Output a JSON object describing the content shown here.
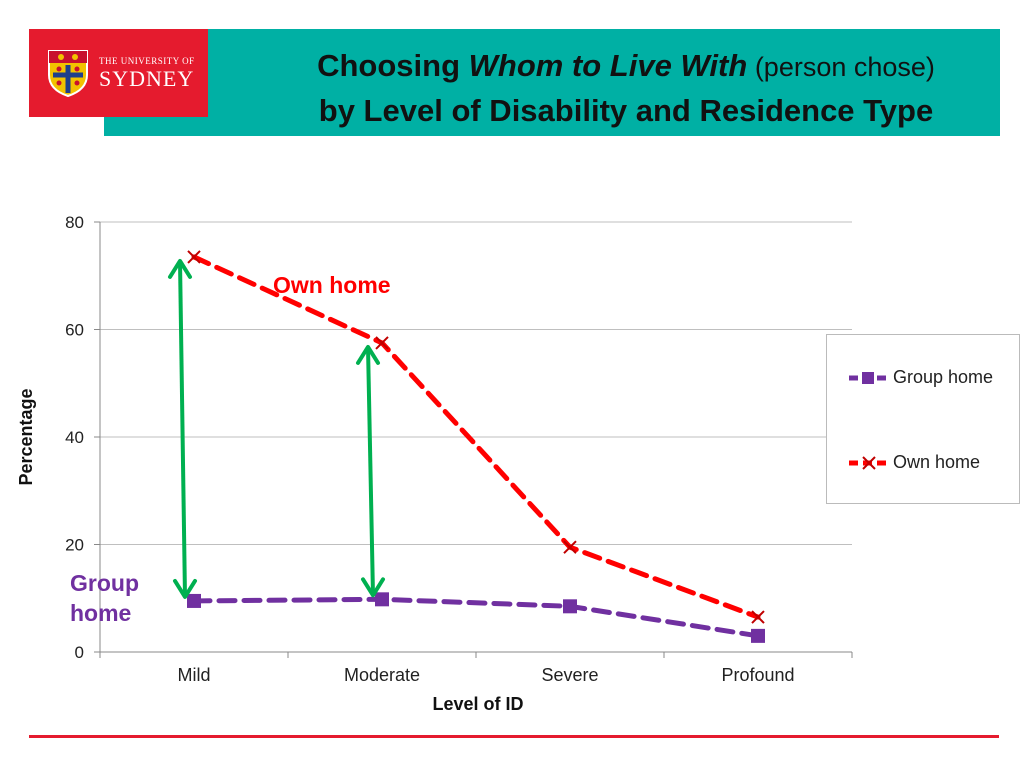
{
  "header": {
    "logo_small": "THE UNIVERSITY OF",
    "logo_big": "SYDNEY",
    "title_part1": "Choosing ",
    "title_italic": "Whom to Live With",
    "title_light": " (person chose)",
    "title_line2": "by Level of Disability and Residence Type"
  },
  "annotations": {
    "own_home": "Own home",
    "group_home_line1": "Group",
    "group_home_line2": "home"
  },
  "legend": {
    "group_home": "Group home",
    "own_home": "Own home"
  },
  "colors": {
    "header_teal": "#00B0A4",
    "logo_red": "#E51B2E",
    "group_home": "#7030A0",
    "own_home": "#FF0000",
    "arrow_green": "#00B050"
  },
  "chart_data": {
    "type": "line",
    "categories": [
      "Mild",
      "Moderate",
      "Severe",
      "Profound"
    ],
    "series": [
      {
        "name": "Group home",
        "values": [
          9.5,
          9.8,
          8.5,
          3.0
        ],
        "color": "#7030A0",
        "marker": "square",
        "line": "dashed"
      },
      {
        "name": "Own home",
        "values": [
          73.5,
          57.5,
          19.5,
          6.5
        ],
        "color": "#FF0000",
        "marker": "x",
        "line": "dashed"
      }
    ],
    "xlabel": "Level of ID",
    "ylabel": "Percentage",
    "ylim": [
      0,
      80
    ],
    "yticks": [
      0,
      20,
      40,
      60,
      80
    ],
    "grid": true,
    "legend_position": "right",
    "arrows": [
      {
        "category": "Mild",
        "from": 9.5,
        "to": 73.5
      },
      {
        "category": "Moderate",
        "from": 9.8,
        "to": 57.5
      }
    ]
  }
}
